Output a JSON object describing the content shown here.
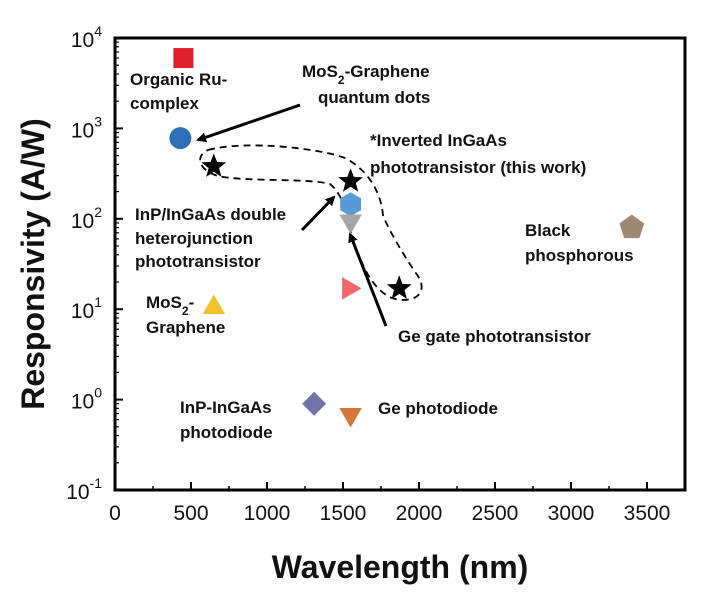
{
  "chart_data": {
    "type": "scatter",
    "title": "",
    "xlabel": "Wavelength (nm)",
    "ylabel": "Responsivity (A/W)",
    "xlim": [
      0,
      3750
    ],
    "ylim": [
      0.1,
      10000
    ],
    "yscale": "log",
    "grid": false,
    "x_ticks": [
      "0",
      "500",
      "1000",
      "1500",
      "2000",
      "2500",
      "3000",
      "3500"
    ],
    "y_ticks": [
      {
        "base": "10",
        "exp": "-1"
      },
      {
        "base": "10",
        "exp": "0"
      },
      {
        "base": "10",
        "exp": "1"
      },
      {
        "base": "10",
        "exp": "2"
      },
      {
        "base": "10",
        "exp": "3"
      },
      {
        "base": "10",
        "exp": "4"
      }
    ],
    "points": [
      {
        "label": "Organic Ru-complex",
        "x": 450,
        "y": 6000,
        "marker": "square",
        "color": "#e0202a"
      },
      {
        "label": "MoS2-Graphene quantum dots",
        "x": 430,
        "y": 780,
        "marker": "circle",
        "color": "#2e6fb5"
      },
      {
        "label": "*Inverted InGaAs phototransistor (this work)",
        "x": 650,
        "y": 380,
        "marker": "star",
        "color": "#000000"
      },
      {
        "label": "*Inverted InGaAs phototransistor (this work)",
        "x": 1550,
        "y": 260,
        "marker": "star",
        "color": "#000000"
      },
      {
        "label": "*Inverted InGaAs phototransistor (this work)",
        "x": 1870,
        "y": 17,
        "marker": "star",
        "color": "#000000"
      },
      {
        "label": "InP/InGaAs double heterojunction phototransistor",
        "x": 1550,
        "y": 145,
        "marker": "hexagon",
        "color": "#5b9bd5"
      },
      {
        "label": "Ge gate phototransistor",
        "x": 1550,
        "y": 90,
        "marker": "triangle-down",
        "color": "#a6a6a6"
      },
      {
        "label": "Black phosphorous",
        "x": 3400,
        "y": 80,
        "marker": "pentagon",
        "color": "#a08872"
      },
      {
        "label": "",
        "x": 1550,
        "y": 17,
        "marker": "triangle-right",
        "color": "#f2666e"
      },
      {
        "label": "MoS2-Graphene",
        "x": 650,
        "y": 11,
        "marker": "triangle-up",
        "color": "#f2c12e"
      },
      {
        "label": "InP-InGaAs photodiode",
        "x": 1310,
        "y": 0.9,
        "marker": "diamond",
        "color": "#7372a8"
      },
      {
        "label": "Ge photodiode",
        "x": 1550,
        "y": 0.65,
        "marker": "triangle-down",
        "color": "#d27838"
      }
    ],
    "annotations": {
      "organic_1": "Organic Ru-",
      "organic_2": "complex",
      "mos2qd_1a": "MoS",
      "mos2qd_1sub": "2",
      "mos2qd_1b": "-Graphene",
      "mos2qd_2": "quantum dots",
      "inverted_1": "*Inverted InGaAs",
      "inverted_2": "phototransistor (this work)",
      "dhbt_1": "InP/InGaAs double",
      "dhbt_2": "heterojunction",
      "dhbt_3": "phototransistor",
      "bp_1": "Black",
      "bp_2": "phosphorous",
      "mos2g_1a": "MoS",
      "mos2g_1sub": "2",
      "mos2g_1b": "-",
      "mos2g_2": "Graphene",
      "gegate": "Ge gate phototransistor",
      "inpd_1": "InP-InGaAs",
      "inpd_2": "photodiode",
      "gepd": "Ge photodiode"
    }
  }
}
